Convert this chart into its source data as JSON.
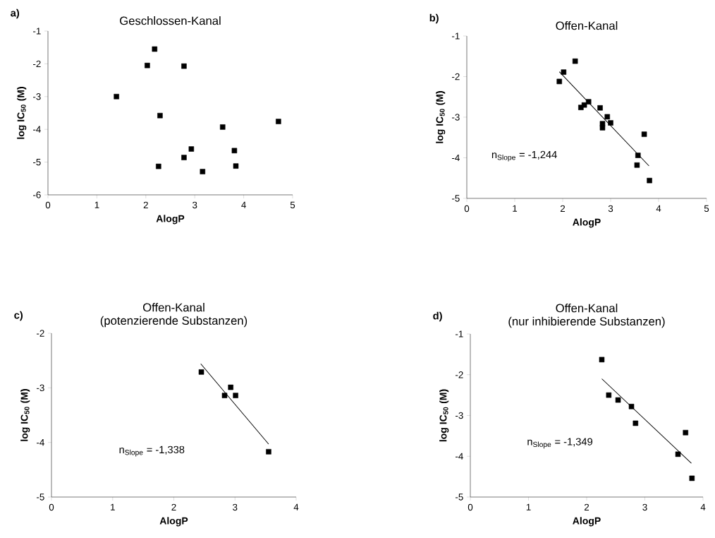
{
  "chart_data": [
    {
      "type": "scatter",
      "title": "Geschlossen-Kanal",
      "xlabel": "AlogP",
      "ylabel": "log IC$_{50}$ (M)",
      "annotations": [
        "a)"
      ],
      "xlim": [
        0,
        5
      ],
      "ylim": [
        -6,
        -1
      ],
      "xticks": [
        0,
        1,
        2,
        3,
        4,
        5
      ],
      "yticks": [
        -6,
        -5,
        -4,
        -3,
        -2,
        -1
      ],
      "series": [
        {
          "marker": "square",
          "color": "#000000",
          "x": [
            2.18,
            2.03,
            2.78,
            1.4,
            2.29,
            3.57,
            4.71,
            2.93,
            3.81,
            2.78,
            2.26,
            3.84,
            3.16
          ],
          "values": [
            -1.55,
            -2.05,
            -2.07,
            -3.0,
            -3.58,
            -3.93,
            -3.76,
            -4.6,
            -4.65,
            -4.86,
            -5.13,
            -5.12,
            -5.29
          ]
        }
      ]
    },
    {
      "type": "scatter",
      "title": "Offen-Kanal",
      "xlabel": "AlogP",
      "ylabel": "log IC$_{50}$ (M)",
      "annotations": [
        "b)",
        "n$_{Slope}$ = -1,244"
      ],
      "xlim": [
        0,
        5
      ],
      "ylim": [
        -5,
        -1
      ],
      "xticks": [
        0,
        1,
        2,
        3,
        4,
        5
      ],
      "yticks": [
        -5,
        -4,
        -3,
        -2,
        -1
      ],
      "series": [
        {
          "marker": "square",
          "color": "#000000",
          "x": [
            1.93,
            2.02,
            2.26,
            2.38,
            2.45,
            2.54,
            2.78,
            2.93,
            2.83,
            2.83,
            3.0,
            3.7,
            3.57,
            3.55,
            3.81
          ],
          "values": [
            -2.12,
            -1.89,
            -1.62,
            -2.76,
            -2.7,
            -2.62,
            -2.77,
            -2.99,
            -3.16,
            -3.26,
            -3.14,
            -3.42,
            -3.94,
            -4.18,
            -4.56
          ]
        },
        {
          "type": "line",
          "color": "#000000",
          "x": [
            1.93,
            3.8
          ],
          "values": [
            -1.88,
            -4.2
          ]
        }
      ]
    },
    {
      "type": "scatter",
      "title": "Offen-Kanal",
      "subtitle": "(potenzierende Substanzen)",
      "xlabel": "AlogP",
      "ylabel": "log IC$_{50}$ (M)",
      "annotations": [
        "c)",
        "n$_{Slope}$ = -1,338"
      ],
      "xlim": [
        0,
        4
      ],
      "ylim": [
        -5,
        -2
      ],
      "xticks": [
        0,
        1,
        2,
        3,
        4
      ],
      "yticks": [
        -5,
        -4,
        -3,
        -2
      ],
      "series": [
        {
          "marker": "square",
          "color": "#000000",
          "x": [
            2.45,
            2.83,
            2.93,
            3.01,
            3.55
          ],
          "values": [
            -2.71,
            -3.14,
            -2.99,
            -3.14,
            -4.17
          ]
        },
        {
          "type": "line",
          "color": "#000000",
          "x": [
            2.44,
            3.55
          ],
          "values": [
            -2.56,
            -4.03
          ]
        }
      ]
    },
    {
      "type": "scatter",
      "title": "Offen-Kanal",
      "subtitle": "(nur inhibierende Substanzen)",
      "xlabel": "AlogP",
      "ylabel": "log IC$_{50}$ (M)",
      "annotations": [
        "d)",
        "n$_{Slope}$ = -1,349"
      ],
      "xlim": [
        0,
        4
      ],
      "ylim": [
        -5,
        -1
      ],
      "xticks": [
        0,
        1,
        2,
        3,
        4
      ],
      "yticks": [
        -5,
        -4,
        -3,
        -2,
        -1
      ],
      "series": [
        {
          "marker": "square",
          "color": "#000000",
          "x": [
            2.26,
            2.38,
            2.54,
            2.77,
            2.84,
            3.7,
            3.57,
            3.81
          ],
          "values": [
            -1.63,
            -2.5,
            -2.62,
            -2.78,
            -3.19,
            -3.42,
            -3.95,
            -4.54
          ]
        },
        {
          "type": "line",
          "color": "#000000",
          "x": [
            2.26,
            3.8
          ],
          "values": [
            -2.1,
            -4.17
          ]
        }
      ]
    }
  ]
}
